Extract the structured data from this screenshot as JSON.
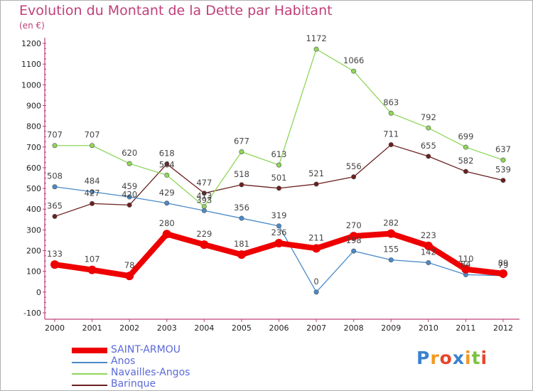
{
  "chart_data": {
    "type": "line",
    "title": "Evolution du Montant de la Dette par Habitant",
    "subtitle": "(en €)",
    "x": [
      "2000",
      "2001",
      "2002",
      "2003",
      "2004",
      "2005",
      "2006",
      "2007",
      "2008",
      "2009",
      "2010",
      "2011",
      "2012"
    ],
    "ylim": [
      -100,
      1200
    ],
    "yticks": [
      -100,
      0,
      100,
      200,
      300,
      400,
      500,
      600,
      700,
      800,
      900,
      1000,
      1100,
      1200
    ],
    "grid": false,
    "legend_position": "bottom-left",
    "series": [
      {
        "name": "Barinque",
        "color": "#6b1f1f",
        "values": [
          365,
          427,
          420,
          618,
          477,
          518,
          501,
          521,
          556,
          711,
          655,
          582,
          539
        ]
      },
      {
        "name": "Navailles-Angos",
        "color": "#8fd65a",
        "values": [
          707,
          707,
          620,
          564,
          413,
          677,
          613,
          1172,
          1066,
          863,
          792,
          699,
          637
        ]
      },
      {
        "name": "Anos",
        "color": "#4a8ac8",
        "values": [
          508,
          484,
          459,
          429,
          393,
          356,
          319,
          0,
          198,
          155,
          142,
          84,
          79
        ]
      },
      {
        "name": "SAINT-ARMOU",
        "color": "#ee0000",
        "values": [
          133,
          107,
          78,
          280,
          229,
          181,
          236,
          211,
          270,
          282,
          223,
          110,
          89
        ]
      }
    ],
    "legend": [
      "SAINT-ARMOU",
      "Anos",
      "Navailles-Angos",
      "Barinque"
    ]
  },
  "logo": {
    "letters": [
      {
        "ch": "P",
        "color": "#3a82d0"
      },
      {
        "ch": "r",
        "color": "#f09a20"
      },
      {
        "ch": "o",
        "color": "#e8452a"
      },
      {
        "ch": "x",
        "color": "#3a82d0"
      },
      {
        "ch": "i",
        "color": "#f09a20"
      },
      {
        "ch": "t",
        "color": "#7cc242"
      },
      {
        "ch": "i",
        "color": "#e8452a"
      }
    ]
  }
}
